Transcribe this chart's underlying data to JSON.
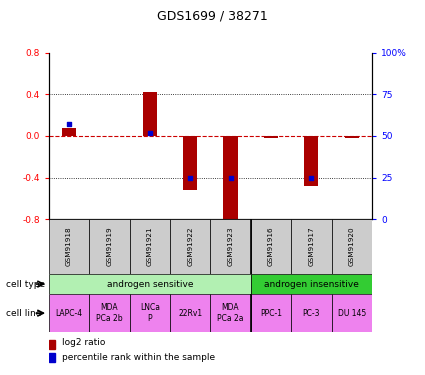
{
  "title": "GDS1699 / 38271",
  "samples": [
    "GSM91918",
    "GSM91919",
    "GSM91921",
    "GSM91922",
    "GSM91923",
    "GSM91916",
    "GSM91917",
    "GSM91920"
  ],
  "log2_ratio": [
    0.08,
    0.0,
    0.42,
    -0.52,
    -0.82,
    -0.02,
    -0.48,
    -0.02
  ],
  "percentile_rank_pct": [
    57,
    50,
    52,
    25,
    25,
    50,
    25,
    50
  ],
  "show_dot": [
    true,
    false,
    true,
    true,
    true,
    false,
    true,
    false
  ],
  "ylim": [
    -0.8,
    0.8
  ],
  "yticks_left": [
    -0.8,
    -0.4,
    0.0,
    0.4,
    0.8
  ],
  "yticks_right": [
    0,
    25,
    50,
    75,
    100
  ],
  "cell_types": [
    {
      "label": "androgen sensitive",
      "start": 0,
      "end": 5,
      "color": "#b2f0b2"
    },
    {
      "label": "androgen insensitive",
      "start": 5,
      "end": 8,
      "color": "#33cc33"
    }
  ],
  "cell_lines": [
    "LAPC-4",
    "MDA\nPCa 2b",
    "LNCa\nP",
    "22Rv1",
    "MDA\nPCa 2a",
    "PPC-1",
    "PC-3",
    "DU 145"
  ],
  "cell_line_color": "#EE82EE",
  "sample_box_color": "#CCCCCC",
  "bar_color": "#AA0000",
  "dot_color": "#0000CC",
  "zero_line_color": "#CC0000",
  "grid_color": "#000000",
  "bar_width": 0.35,
  "dot_size": 12
}
